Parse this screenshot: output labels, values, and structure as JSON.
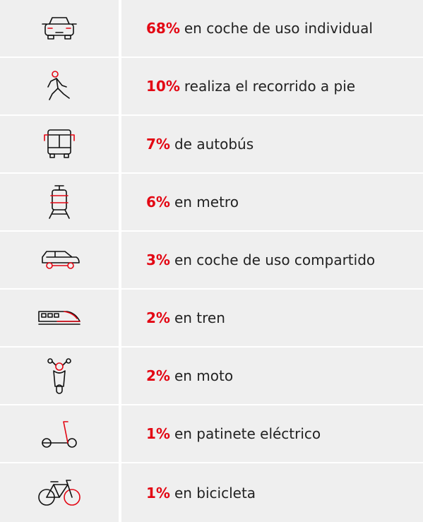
{
  "rows": [
    {
      "percent": "68%",
      "text": "en coche de uso individual"
    },
    {
      "percent": "10%",
      "text": "realiza el recorrido a pie"
    },
    {
      "percent": "7%",
      "text": "de autobús"
    },
    {
      "percent": "6%",
      "text": "en metro"
    },
    {
      "percent": "3%",
      "text": "en coche de uso compartido"
    },
    {
      "percent": "2%",
      "text": "en tren"
    },
    {
      "percent": "2%",
      "text": "en moto"
    },
    {
      "percent": "1%",
      "text": "en patinete eléctrico"
    },
    {
      "percent": "1%",
      "text": "en bicicleta"
    }
  ]
}
